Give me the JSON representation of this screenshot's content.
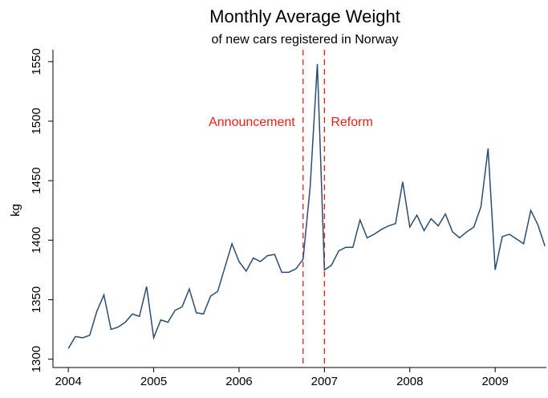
{
  "chart_data": {
    "type": "line",
    "title": "Monthly Average Weight",
    "subtitle": "of new cars registered in Norway",
    "ylabel": "kg",
    "x": [
      2004,
      2004.083,
      2004.167,
      2004.25,
      2004.333,
      2004.417,
      2004.5,
      2004.583,
      2004.667,
      2004.75,
      2004.833,
      2004.917,
      2005,
      2005.083,
      2005.167,
      2005.25,
      2005.333,
      2005.417,
      2005.5,
      2005.583,
      2005.667,
      2005.75,
      2005.833,
      2005.917,
      2006,
      2006.083,
      2006.167,
      2006.25,
      2006.333,
      2006.417,
      2006.5,
      2006.583,
      2006.667,
      2006.75,
      2006.833,
      2006.917,
      2007,
      2007.083,
      2007.167,
      2007.25,
      2007.333,
      2007.417,
      2007.5,
      2007.583,
      2007.667,
      2007.75,
      2007.833,
      2007.917,
      2008,
      2008.083,
      2008.167,
      2008.25,
      2008.333,
      2008.417,
      2008.5,
      2008.583,
      2008.667,
      2008.75,
      2008.833,
      2008.917,
      2009,
      2009.083,
      2009.167,
      2009.25,
      2009.333,
      2009.417,
      2009.5,
      2009.583
    ],
    "series": [
      {
        "name": "kg",
        "color": "#2b4d6f",
        "values": [
          1309,
          1319,
          1318,
          1320,
          1340,
          1354,
          1325,
          1327,
          1331,
          1338,
          1336,
          1361,
          1318,
          1333,
          1331,
          1341,
          1344,
          1359,
          1339,
          1338,
          1353,
          1357,
          1377,
          1397,
          1382,
          1374,
          1385,
          1382,
          1387,
          1388,
          1373,
          1373,
          1376,
          1384,
          1445,
          1548,
          1375,
          1379,
          1391,
          1394,
          1394,
          1417,
          1402,
          1405,
          1409,
          1412,
          1414,
          1449,
          1411,
          1421,
          1408,
          1418,
          1412,
          1422,
          1407,
          1402,
          1407,
          1411,
          1428,
          1477,
          1375,
          1403,
          1405,
          1401,
          1397,
          1425,
          1413,
          1395
        ]
      }
    ],
    "annotations": [
      {
        "x": 2006.75,
        "label": "Announcement",
        "color": "#e8201a"
      },
      {
        "x": 2007,
        "label": "Reform",
        "color": "#e8201a"
      }
    ],
    "xlim": [
      2003.82,
      2009.6
    ],
    "xticks": [
      2004,
      2005,
      2006,
      2007,
      2008,
      2009
    ],
    "ylim": [
      1293,
      1560
    ],
    "yticks": [
      1300,
      1350,
      1400,
      1450,
      1500,
      1550
    ]
  }
}
